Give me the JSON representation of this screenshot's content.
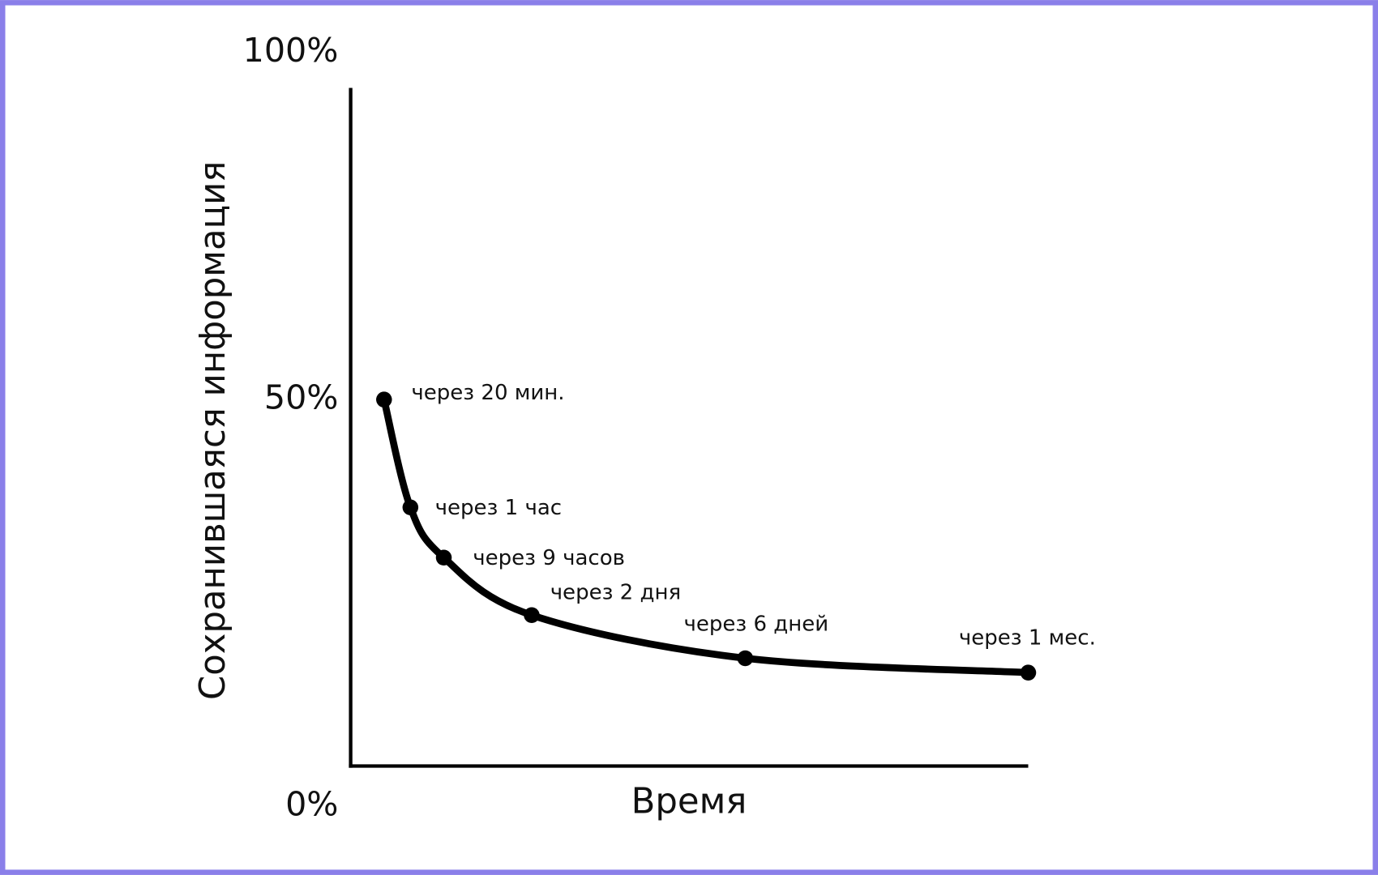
{
  "chart_data": {
    "type": "line",
    "x_label": "Время",
    "y_label": "Сохранившаяся информация",
    "categories": [
      "через 20 мин.",
      "через 1 час",
      "через 9 часов",
      "через 2 дня",
      "через 6 дней",
      "через 1 мес."
    ],
    "values": [
      51,
      36,
      29,
      21,
      15,
      13
    ],
    "color": "#000000",
    "ylim": [
      0,
      100
    ],
    "yticks": [
      {
        "value": 0,
        "label": "0%"
      },
      {
        "value": 50,
        "label": "50%"
      },
      {
        "value": 100,
        "label": "100%"
      }
    ]
  }
}
